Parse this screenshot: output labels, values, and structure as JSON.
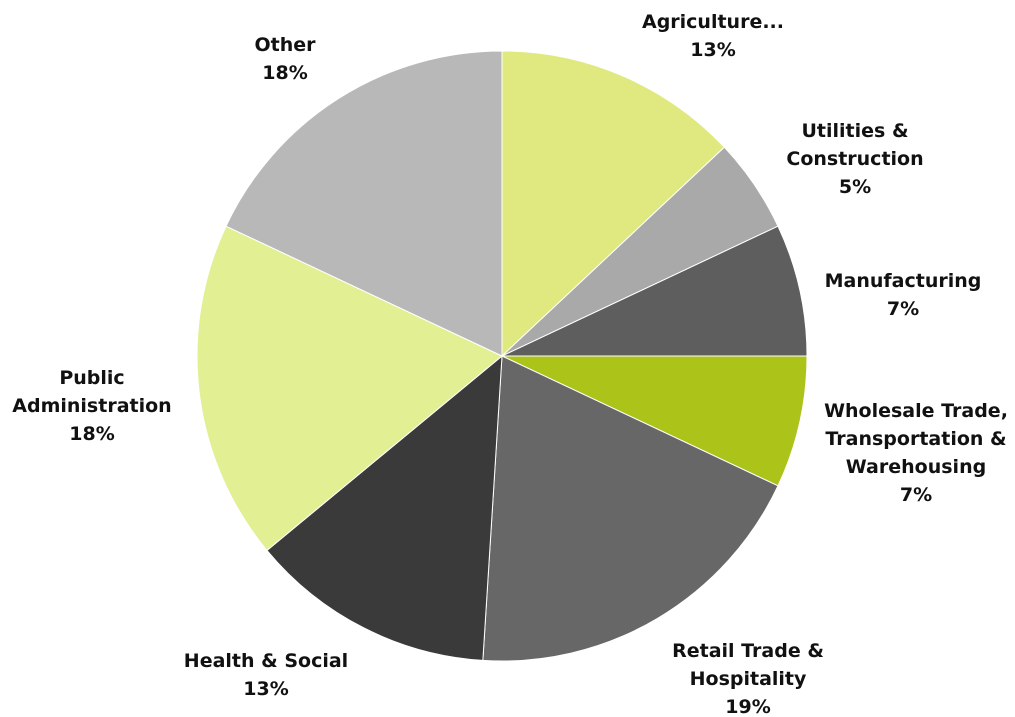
{
  "chart_data": {
    "type": "pie",
    "title": "",
    "slices": [
      {
        "label_lines": [
          "Agriculture..."
        ],
        "value": 13,
        "value_label": "13%",
        "color": "#dfe97f"
      },
      {
        "label_lines": [
          "Utilities &",
          "Construction"
        ],
        "value": 5,
        "value_label": "5%",
        "color": "#a9a9a9"
      },
      {
        "label_lines": [
          "Manufacturing"
        ],
        "value": 7,
        "value_label": "7%",
        "color": "#5e5e5e"
      },
      {
        "label_lines": [
          "Wholesale Trade,",
          "Transportation &",
          "Warehousing"
        ],
        "value": 7,
        "value_label": "7%",
        "color": "#acc31a"
      },
      {
        "label_lines": [
          "Retail Trade &",
          "Hospitality"
        ],
        "value": 19,
        "value_label": "19%",
        "color": "#676767"
      },
      {
        "label_lines": [
          "Health & Social"
        ],
        "value": 13,
        "value_label": "13%",
        "color": "#3a3a3a"
      },
      {
        "label_lines": [
          "Public",
          "Administration"
        ],
        "value": 18,
        "value_label": "18%",
        "color": "#e2ef93"
      },
      {
        "label_lines": [
          "Other"
        ],
        "value": 18,
        "value_label": "18%",
        "color": "#b8b8b8"
      }
    ]
  }
}
